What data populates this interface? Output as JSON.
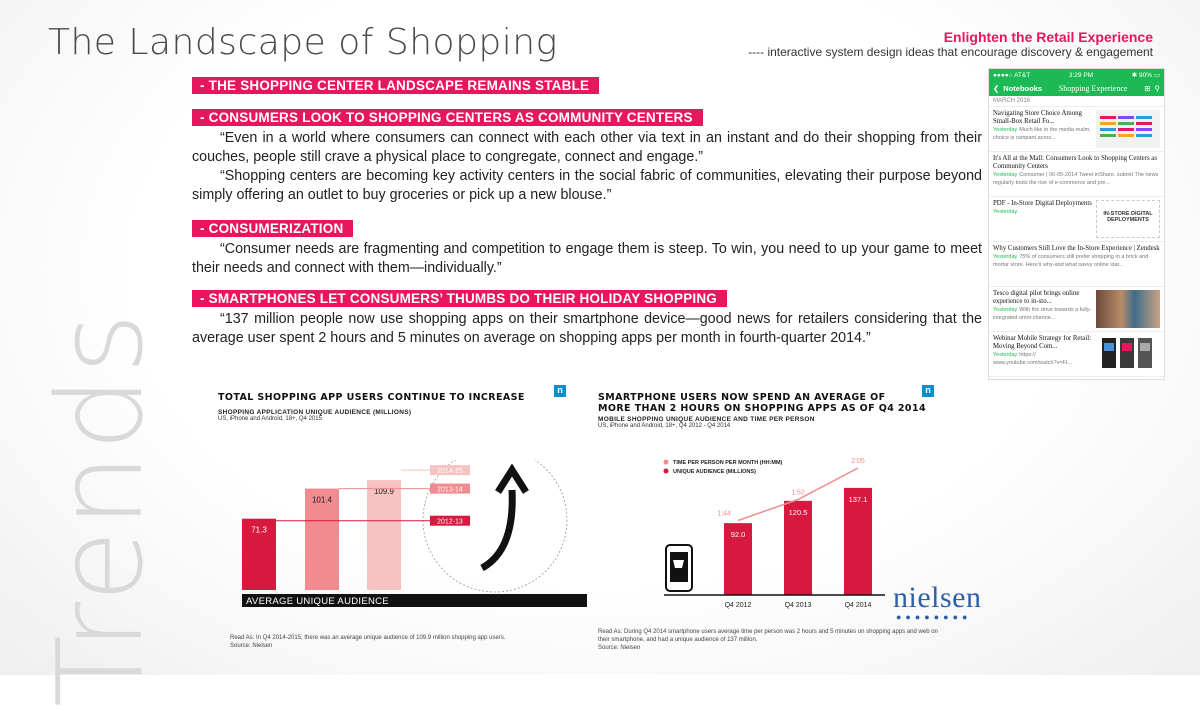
{
  "header": {
    "title": "The Landscape of Shopping",
    "brand_title": "Enlighten the Retail Experience",
    "brand_subtitle": "---- interactive system design ideas that encourage discovery & engagement",
    "side_word": "Trends"
  },
  "sections": [
    {
      "heading": "- THE SHOPPING CENTER LANDSCAPE REMAINS STABLE",
      "paragraphs": []
    },
    {
      "heading": "- CONSUMERS LOOK TO SHOPPING CENTERS AS COMMUNITY CENTERS",
      "paragraphs": [
        "“Even in a world where consumers can connect with each other via text in an instant and do their shopping from their couches, people still crave a physical place to congregate, connect and engage.”",
        "“Shopping centers are becoming key activity centers in the social fabric of communities, elevating their purpose beyond simply offering an outlet to buy groceries or pick up a new blouse.”"
      ]
    },
    {
      "heading": "- CONSUMERIZATION",
      "paragraphs": [
        "“Consumer needs are fragmenting and competition to engage them is steep. To win, you need to up your game to meet their needs and connect with them—individually.”"
      ]
    },
    {
      "heading": "- SMARTPHONES LET CONSUMERS’ THUMBS DO THEIR HOLIDAY SHOPPING",
      "paragraphs": [
        "“137 million people now use shopping apps on their smartphone device—good news for retailers considering that the average user spent 2 hours and 5 minutes on average on shopping apps per month in fourth-quarter 2014.”"
      ]
    }
  ],
  "phone": {
    "status_left": "●●●●○ AT&T",
    "status_time": "3:29 PM",
    "status_right": "✱ 90% ▭",
    "back_label": "Notebooks",
    "nav_title": "Shopping Experience",
    "month": "MARCH 2016",
    "notes": [
      {
        "title": "Navigating Store Choice Among Small-Box Retail Fo...",
        "date": "Yesterday",
        "snippet": "Much like in the media realm, choice is rampant acros..."
      },
      {
        "title": "It's All at the Mall: Consumers Look to Shopping Centers as Community Centers",
        "date": "Yesterday",
        "snippet": "Consumer | 06-05-2014 Tweet inShare. submit The news regularly touts the rise of e-commerce and pre..."
      },
      {
        "title": "PDF - In-Store Digital Deployments",
        "date": "Yesterday",
        "snippet": "",
        "thumb": "IN-STORE DIGITAL DEPLOYMENTS"
      },
      {
        "title": "Why Customers Still Love the In-Store Experience | Zendesk",
        "date": "Yesterday",
        "snippet": "75% of consumers still prefer shopping in a brick and mortar store. Here's why-and what savvy online star..."
      },
      {
        "title": "Tesco digital pilot brings online experience to in-sto...",
        "date": "Yesterday",
        "snippet": "With the drive towards a fully-integrated omni-channe..."
      },
      {
        "title": "Webinar Mobile Strategy for Retail: Moving Beyond Com...",
        "date": "Yesterday",
        "snippet": "https:// www.youtube.com/watch?v=Ft..."
      }
    ]
  },
  "chart_left": {
    "badge": "n",
    "note": "Read As: In Q4 2014-2015, there was an average unique audience of 109.9 million shopping app users.",
    "source": "Source: Nielsen"
  },
  "chart_right": {
    "badge": "n",
    "note": "Read As: During Q4 2014 smartphone users average time per person was 2 hours and 5 minutes on shopping apps and web on their smartphone, and had a unique audience of 137 million.",
    "source": "Source: Nielsen"
  },
  "chart_data": [
    {
      "type": "bar",
      "title": "TOTAL SHOPPING APP USERS CONTINUE TO INCREASE",
      "subtitle": "SHOPPING APPLICATION UNIQUE AUDIENCE (MILLIONS)",
      "subtitle2": "US, iPhone and Android, 18+, Q4 2015",
      "categories": [
        "2012-13",
        "2013-14",
        "2014-15"
      ],
      "values": [
        71.3,
        101.4,
        109.9
      ],
      "value_labels": [
        "71.3",
        "101.4",
        "109.9"
      ],
      "colors": [
        "#d7193f",
        "#f08b8f",
        "#f6c2c2"
      ],
      "xlabel": "AVERAGE UNIQUE AUDIENCE",
      "ylim": [
        0,
        140
      ]
    },
    {
      "type": "bar",
      "title_lines": [
        "SMARTPHONE USERS NOW SPEND AN AVERAGE OF",
        "MORE THAN 2 HOURS ON SHOPPING APPS AS OF Q4 2014"
      ],
      "subtitle": "MOBILE SHOPPING UNIQUE AUDIENCE AND TIME PER PERSON",
      "subtitle2": "US, iPhone and Android, 18+, Q4 2012 - Q4 2014",
      "categories": [
        "Q4 2012",
        "Q4 2013",
        "Q4 2014"
      ],
      "series": [
        {
          "name": "UNIQUE AUDIENCE (MILLIONS)",
          "values": [
            92.0,
            120.5,
            137.1
          ],
          "labels": [
            "92.0",
            "120.5",
            "137.1"
          ],
          "color": "#d7193f"
        },
        {
          "name": "TIME PER PERSON PER MONTH (HH:MM)",
          "values": [
            1.73,
            1.87,
            2.08
          ],
          "labels": [
            "1:44",
            "1:52",
            "2:05"
          ],
          "color": "#f08b8f"
        }
      ],
      "ylim": [
        0,
        160
      ]
    }
  ],
  "logo": {
    "text": "nielsen",
    "dots": "●●●●●●●●"
  }
}
